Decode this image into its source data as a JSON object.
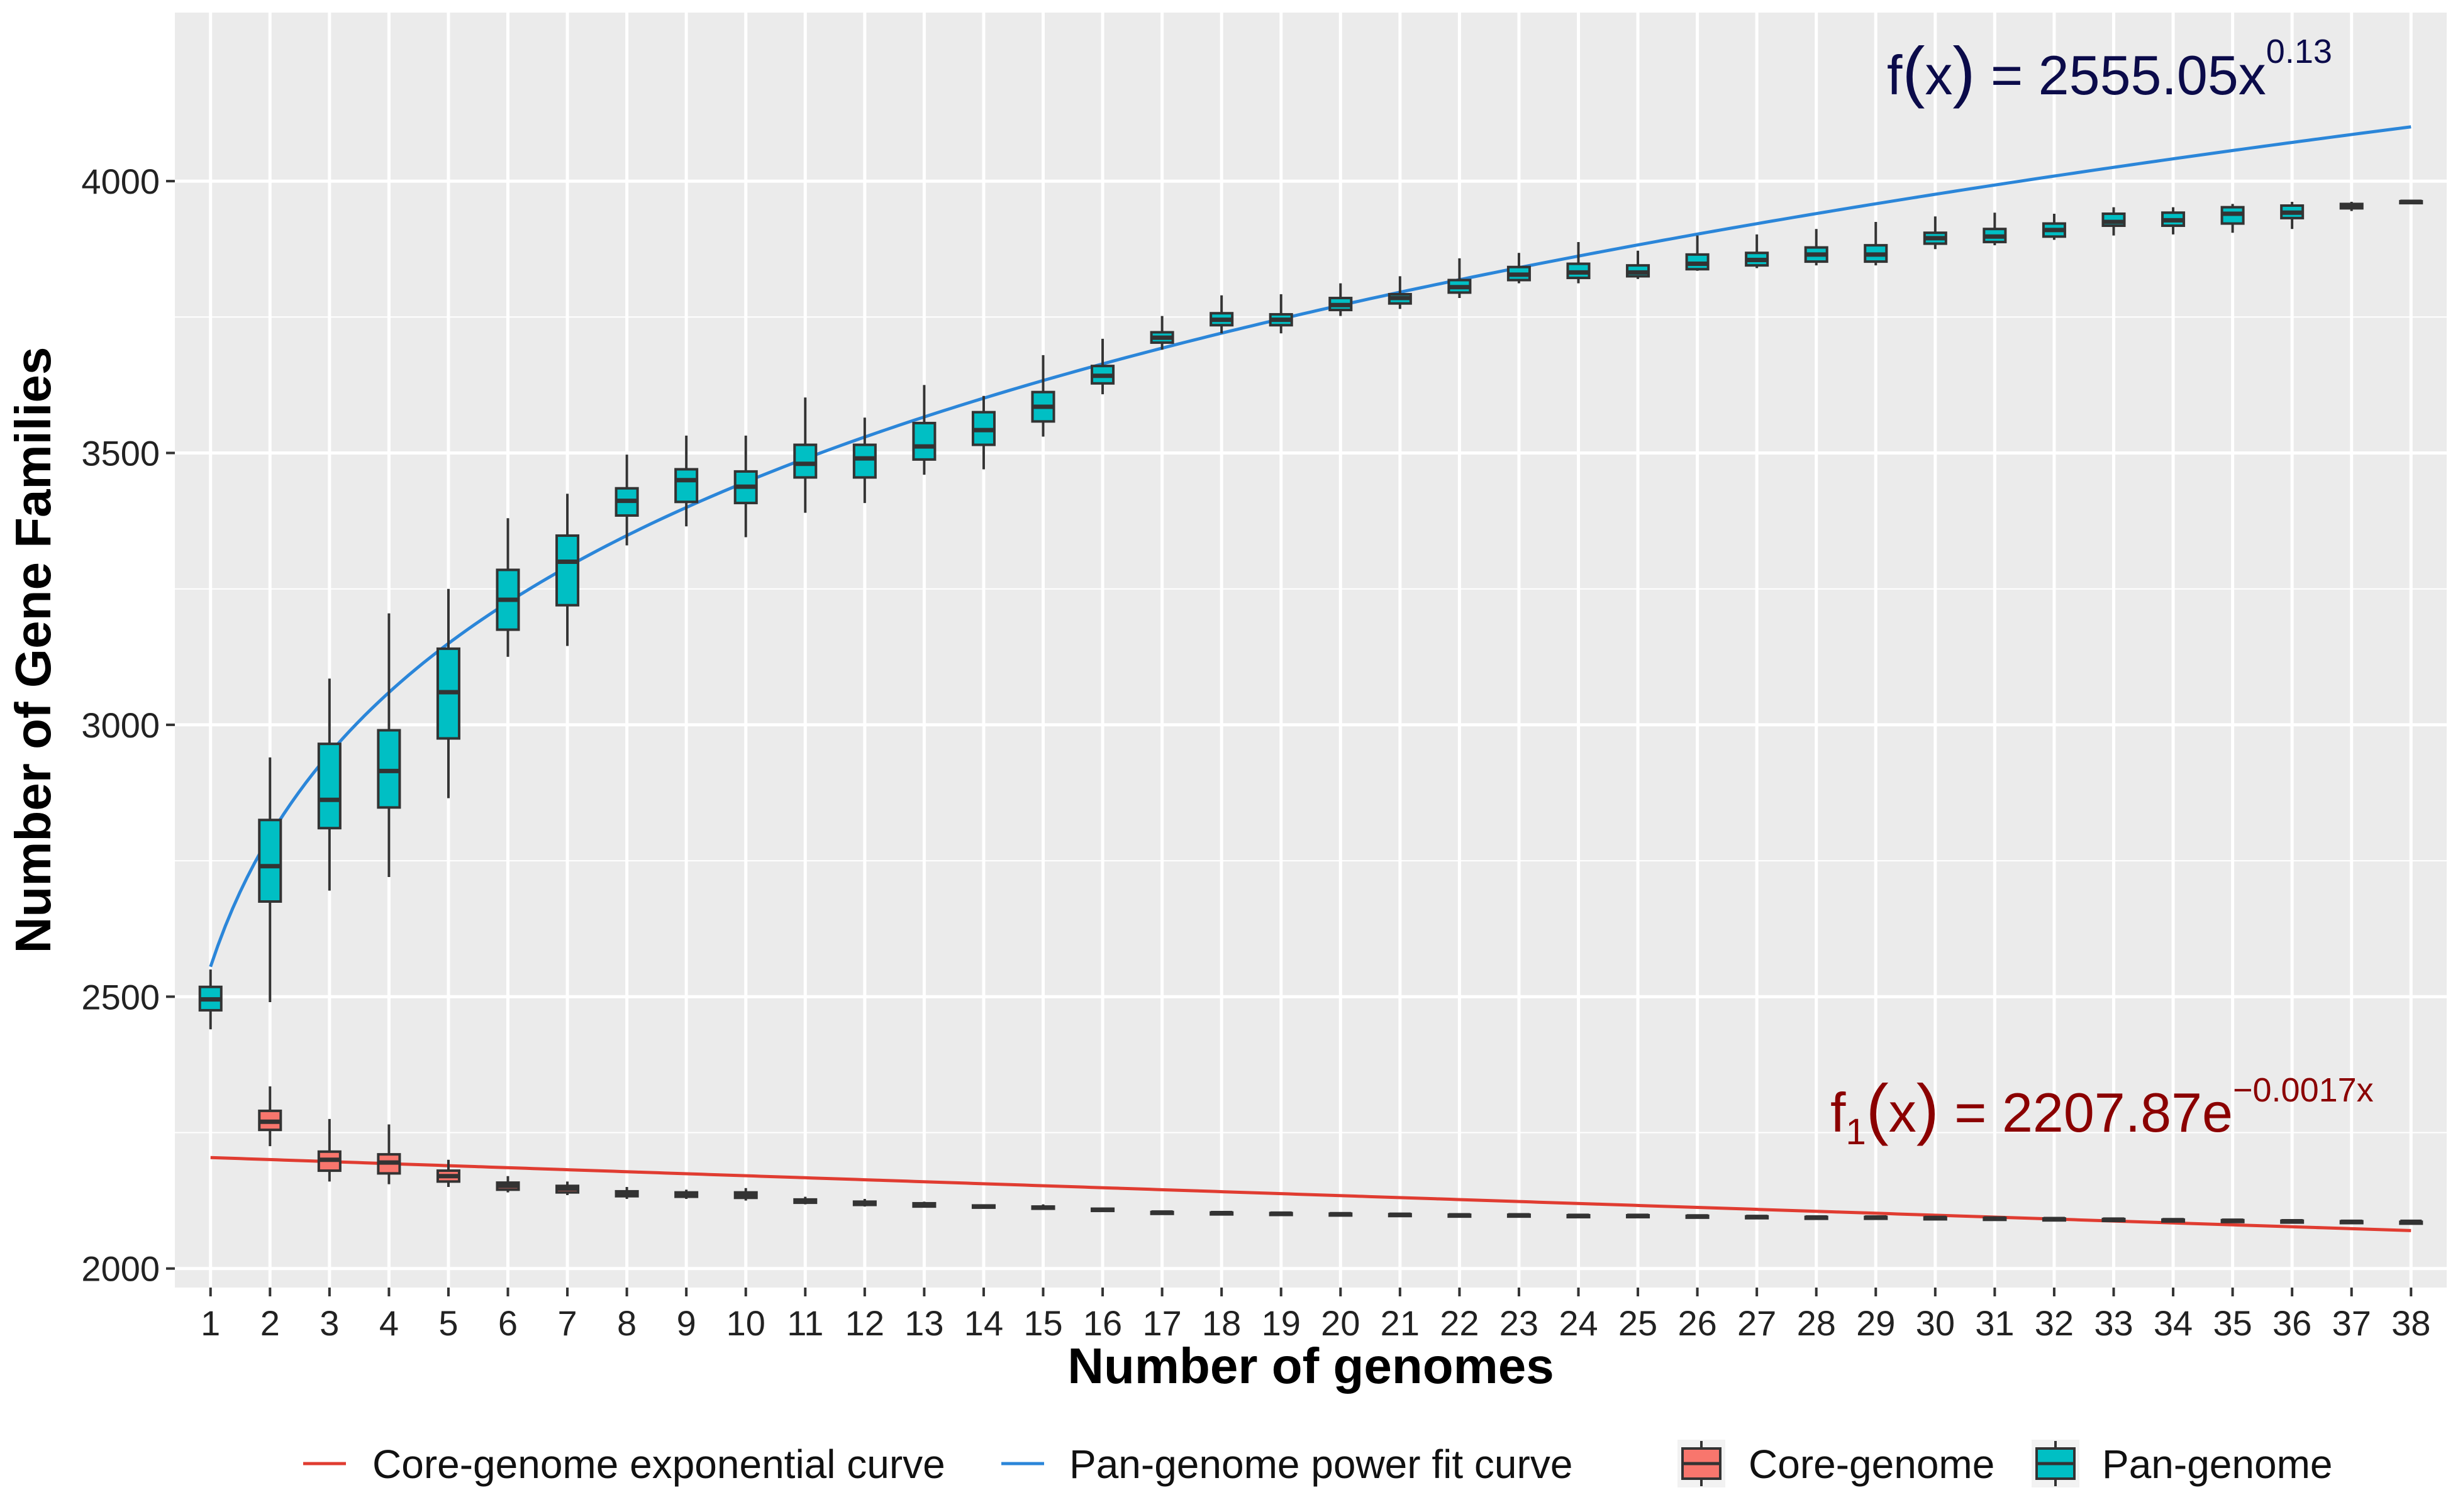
{
  "chart_data": {
    "type": "boxplot",
    "xlabel": "Number of genomes",
    "ylabel": "Number of Gene Families",
    "xlim": [
      0.4,
      38.6
    ],
    "ylim": [
      1965,
      4310
    ],
    "yticks": [
      2000,
      2500,
      3000,
      3500,
      4000
    ],
    "x_ticks": [
      1,
      2,
      3,
      4,
      5,
      6,
      7,
      8,
      9,
      10,
      11,
      12,
      13,
      14,
      15,
      16,
      17,
      18,
      19,
      20,
      21,
      22,
      23,
      24,
      25,
      26,
      27,
      28,
      29,
      30,
      31,
      32,
      33,
      34,
      35,
      36,
      37,
      38
    ],
    "grid": true,
    "legend_position": "bottom",
    "colors": {
      "panel_bg": "#ebebeb",
      "grid": "#ffffff",
      "pan_fill": "#00bfc4",
      "core_fill": "#f8766d",
      "pan_curve": "#2b86d9",
      "core_curve": "#e03c31",
      "box_stroke": "#333333"
    },
    "series": [
      {
        "name": "Pan-genome",
        "kind": "box",
        "boxes": [
          [
            1,
            2440,
            2475,
            2495,
            2518,
            2550
          ],
          [
            2,
            2490,
            2675,
            2740,
            2825,
            2940
          ],
          [
            3,
            2695,
            2810,
            2862,
            2965,
            3085
          ],
          [
            4,
            2720,
            2848,
            2915,
            2990,
            3205
          ],
          [
            5,
            2865,
            2975,
            3060,
            3140,
            3250
          ],
          [
            6,
            3125,
            3175,
            3230,
            3285,
            3380
          ],
          [
            7,
            3145,
            3220,
            3300,
            3348,
            3425
          ],
          [
            8,
            3330,
            3385,
            3412,
            3435,
            3497
          ],
          [
            9,
            3365,
            3410,
            3450,
            3470,
            3532
          ],
          [
            10,
            3345,
            3408,
            3438,
            3466,
            3532
          ],
          [
            11,
            3390,
            3455,
            3480,
            3515,
            3602
          ],
          [
            12,
            3408,
            3455,
            3490,
            3515,
            3565
          ],
          [
            13,
            3460,
            3488,
            3512,
            3555,
            3625
          ],
          [
            14,
            3470,
            3515,
            3542,
            3575,
            3605
          ],
          [
            15,
            3530,
            3558,
            3585,
            3612,
            3680
          ],
          [
            16,
            3608,
            3628,
            3642,
            3660,
            3710
          ],
          [
            17,
            3690,
            3703,
            3712,
            3722,
            3752
          ],
          [
            18,
            3720,
            3735,
            3745,
            3757,
            3790
          ],
          [
            19,
            3720,
            3735,
            3745,
            3755,
            3792
          ],
          [
            20,
            3752,
            3763,
            3772,
            3785,
            3812
          ],
          [
            21,
            3765,
            3775,
            3785,
            3792,
            3825
          ],
          [
            22,
            3785,
            3795,
            3805,
            3818,
            3858
          ],
          [
            23,
            3812,
            3818,
            3828,
            3842,
            3868
          ],
          [
            24,
            3812,
            3822,
            3832,
            3848,
            3888
          ],
          [
            25,
            3820,
            3825,
            3832,
            3845,
            3872
          ],
          [
            26,
            3835,
            3838,
            3848,
            3865,
            3900
          ],
          [
            27,
            3840,
            3845,
            3855,
            3868,
            3902
          ],
          [
            28,
            3845,
            3852,
            3865,
            3878,
            3912
          ],
          [
            29,
            3845,
            3852,
            3865,
            3882,
            3925
          ],
          [
            30,
            3875,
            3885,
            3895,
            3905,
            3935
          ],
          [
            31,
            3882,
            3888,
            3898,
            3912,
            3942
          ],
          [
            32,
            3892,
            3898,
            3910,
            3922,
            3940
          ],
          [
            33,
            3900,
            3918,
            3925,
            3940,
            3952
          ],
          [
            34,
            3902,
            3918,
            3928,
            3942,
            3952
          ],
          [
            35,
            3905,
            3922,
            3940,
            3952,
            3958
          ],
          [
            36,
            3912,
            3932,
            3942,
            3955,
            3962
          ],
          [
            37,
            3945,
            3950,
            3955,
            3958,
            3962
          ],
          [
            38,
            3958,
            3960,
            3962,
            3963,
            3965
          ]
        ]
      },
      {
        "name": "Core-genome",
        "kind": "box",
        "boxes": [
          [
            2,
            2225,
            2255,
            2270,
            2290,
            2335
          ],
          [
            3,
            2160,
            2180,
            2200,
            2215,
            2275
          ],
          [
            4,
            2155,
            2175,
            2195,
            2210,
            2265
          ],
          [
            5,
            2150,
            2160,
            2170,
            2180,
            2200
          ],
          [
            6,
            2140,
            2145,
            2152,
            2158,
            2170
          ],
          [
            7,
            2135,
            2140,
            2147,
            2152,
            2160
          ],
          [
            8,
            2128,
            2133,
            2138,
            2142,
            2150
          ],
          [
            9,
            2128,
            2132,
            2136,
            2140,
            2145
          ],
          [
            10,
            2125,
            2130,
            2135,
            2140,
            2148
          ],
          [
            11,
            2118,
            2121,
            2124,
            2127,
            2132
          ],
          [
            12,
            2114,
            2117,
            2120,
            2123,
            2128
          ],
          [
            13,
            2112,
            2114,
            2117,
            2120,
            2123
          ],
          [
            14,
            2110,
            2112,
            2114,
            2116,
            2118
          ],
          [
            15,
            2108,
            2110,
            2112,
            2114,
            2118
          ],
          [
            16,
            2104,
            2106,
            2108,
            2110,
            2112
          ],
          [
            17,
            2100,
            2102,
            2103,
            2104,
            2106
          ],
          [
            18,
            2100,
            2101,
            2102,
            2103,
            2105
          ],
          [
            19,
            2099,
            2100,
            2101,
            2102,
            2104
          ],
          [
            20,
            2098,
            2099,
            2100,
            2101,
            2103
          ],
          [
            21,
            2097,
            2098,
            2099,
            2100,
            2102
          ],
          [
            22,
            2096,
            2097,
            2098,
            2099,
            2101
          ],
          [
            23,
            2096,
            2097,
            2098,
            2099,
            2100
          ],
          [
            24,
            2095,
            2096,
            2097,
            2098,
            2100
          ],
          [
            25,
            2095,
            2096,
            2097,
            2098,
            2099
          ],
          [
            26,
            2094,
            2095,
            2096,
            2097,
            2099
          ],
          [
            27,
            2093,
            2094,
            2095,
            2096,
            2098
          ],
          [
            28,
            2092,
            2093,
            2094,
            2095,
            2097
          ],
          [
            29,
            2092,
            2093,
            2094,
            2095,
            2096
          ],
          [
            30,
            2091,
            2092,
            2093,
            2094,
            2095
          ],
          [
            31,
            2090,
            2091,
            2092,
            2093,
            2094
          ],
          [
            32,
            2089,
            2090,
            2091,
            2092,
            2093
          ],
          [
            33,
            2088,
            2089,
            2090,
            2091,
            2092
          ],
          [
            34,
            2088,
            2088,
            2089,
            2090,
            2091
          ],
          [
            35,
            2086,
            2087,
            2088,
            2089,
            2091
          ],
          [
            36,
            2086,
            2086,
            2087,
            2088,
            2090
          ],
          [
            37,
            2085,
            2086,
            2086,
            2087,
            2088
          ],
          [
            38,
            2084,
            2085,
            2086,
            2086,
            2087
          ]
        ]
      },
      {
        "name": "Pan-genome power fit curve",
        "kind": "curve",
        "model": "power",
        "a": 2555.05,
        "b": 0.13,
        "x_range": [
          1,
          38
        ]
      },
      {
        "name": "Core-genome exponential curve",
        "kind": "curve",
        "model": "exponential",
        "a": 2207.87,
        "b": -0.0017,
        "x_range": [
          1,
          38
        ]
      }
    ],
    "annotations": {
      "pan": {
        "prefix": "f",
        "open": "(",
        "var": "x",
        "close": ")",
        "rhs": " = 2555.05x",
        "exponent": "0.13"
      },
      "core": {
        "prefix": "f",
        "subscript": "1",
        "open": "(",
        "var": "x",
        "close": ")",
        "rhs": " = 2207.87e",
        "exponent": "−0.0017x"
      }
    },
    "legend": [
      {
        "label": "Core-genome exponential curve",
        "kind": "line",
        "color_key": "core_curve"
      },
      {
        "label": "Pan-genome power fit curve",
        "kind": "line",
        "color_key": "pan_curve"
      },
      {
        "label": "Core-genome",
        "kind": "box",
        "color_key": "core_fill"
      },
      {
        "label": "Pan-genome",
        "kind": "box",
        "color_key": "pan_fill"
      }
    ]
  }
}
